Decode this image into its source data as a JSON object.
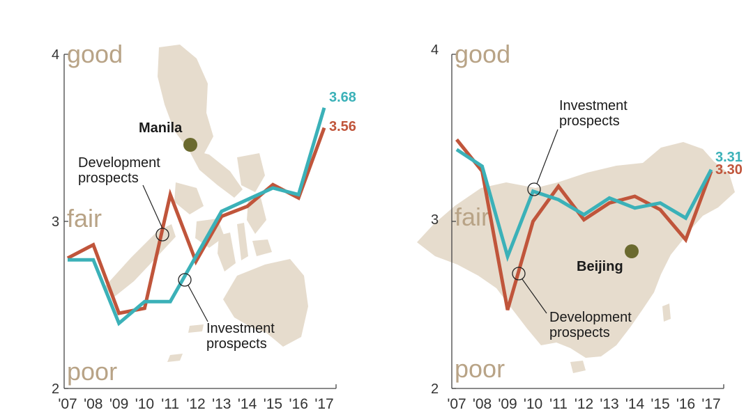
{
  "charts": [
    {
      "chart_data": {
        "type": "line",
        "categories": [
          "'07",
          "'08",
          "'09",
          "'10",
          "'11",
          "'12",
          "'13",
          "'14",
          "'15",
          "'16",
          "'17"
        ],
        "ylim": [
          2,
          4
        ],
        "y_ticks": [
          "2",
          "3",
          "4"
        ],
        "quality_labels": [
          "good",
          "fair",
          "poor"
        ],
        "series": [
          {
            "name": "Development prospects",
            "color": "#c0553b",
            "values": [
              2.78,
              2.86,
              2.45,
              2.48,
              3.16,
              2.76,
              3.03,
              3.09,
              3.22,
              3.14,
              3.56
            ]
          },
          {
            "name": "Investment prospects",
            "color": "#3bb1b8",
            "values": [
              2.77,
              2.77,
              2.39,
              2.52,
              2.52,
              2.79,
              3.06,
              3.13,
              3.2,
              3.16,
              3.68
            ]
          }
        ],
        "end_labels": [
          "3.56",
          "3.68"
        ],
        "city": "Manila",
        "map": "philippines",
        "grid": false
      }
    },
    {
      "chart_data": {
        "type": "line",
        "categories": [
          "'07",
          "'08",
          "'09",
          "'10",
          "'11",
          "'12",
          "'13",
          "'14",
          "'15",
          "'16",
          "'17"
        ],
        "ylim": [
          2,
          4
        ],
        "y_ticks": [
          "2",
          "3",
          "4"
        ],
        "quality_labels": [
          "good",
          "fair",
          "poor"
        ],
        "series": [
          {
            "name": "Development prospects",
            "color": "#c0553b",
            "values": [
              3.49,
              3.3,
              2.47,
              3.0,
              3.21,
              3.01,
              3.11,
              3.15,
              3.07,
              2.89,
              3.3
            ]
          },
          {
            "name": "Investment prospects",
            "color": "#3bb1b8",
            "values": [
              3.43,
              3.33,
              2.79,
              3.18,
              3.13,
              3.04,
              3.14,
              3.08,
              3.11,
              3.02,
              3.31
            ]
          }
        ],
        "end_labels": [
          "3.30",
          "3.31"
        ],
        "city": "Beijing",
        "map": "china",
        "grid": false
      }
    }
  ]
}
